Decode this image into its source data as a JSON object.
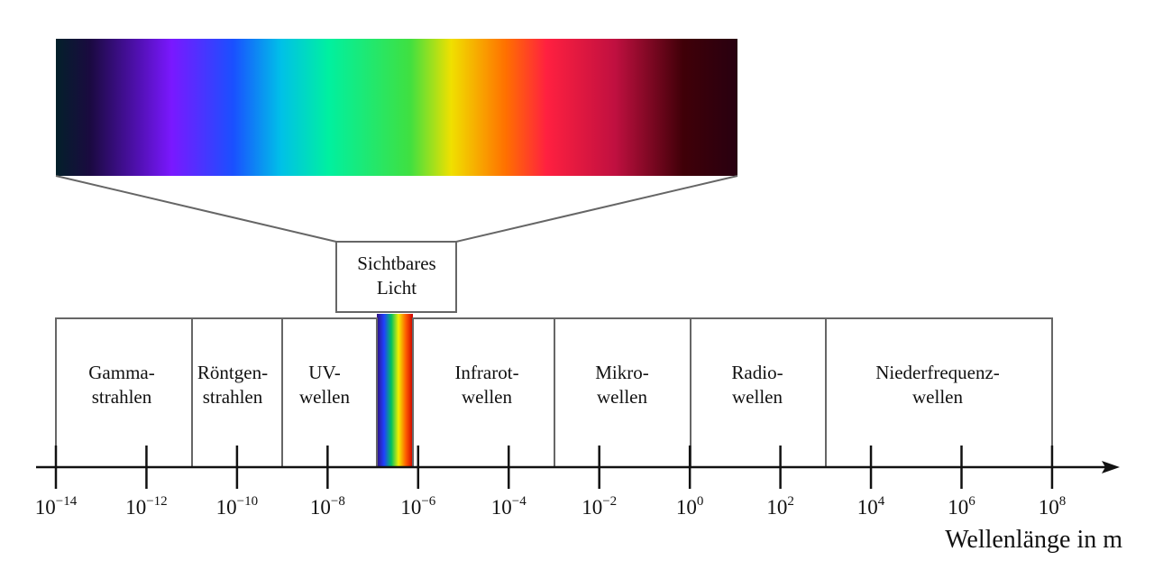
{
  "visible_light": {
    "label": [
      "Sichtbares",
      "Licht"
    ]
  },
  "regions": [
    {
      "label": [
        "Gamma-",
        "strahlen"
      ]
    },
    {
      "label": [
        "Röntgen-",
        "strahlen"
      ]
    },
    {
      "label": [
        "UV-",
        "wellen"
      ]
    },
    {
      "label": [
        "Infrarot-",
        "wellen"
      ]
    },
    {
      "label": [
        "Mikro-",
        "wellen"
      ]
    },
    {
      "label": [
        "Radio-",
        "wellen"
      ]
    },
    {
      "label": [
        "Niederfrequenz-",
        "wellen"
      ]
    }
  ],
  "axis": {
    "label": "Wellenlänge in m",
    "ticks": [
      {
        "base": "10",
        "exponent": "−14"
      },
      {
        "base": "10",
        "exponent": "−12"
      },
      {
        "base": "10",
        "exponent": "−10"
      },
      {
        "base": "10",
        "exponent": "−8"
      },
      {
        "base": "10",
        "exponent": "−6"
      },
      {
        "base": "10",
        "exponent": "−4"
      },
      {
        "base": "10",
        "exponent": "−2"
      },
      {
        "base": "10",
        "exponent": "0"
      },
      {
        "base": "10",
        "exponent": "2"
      },
      {
        "base": "10",
        "exponent": "4"
      },
      {
        "base": "10",
        "exponent": "6"
      },
      {
        "base": "10",
        "exponent": "8"
      }
    ]
  }
}
